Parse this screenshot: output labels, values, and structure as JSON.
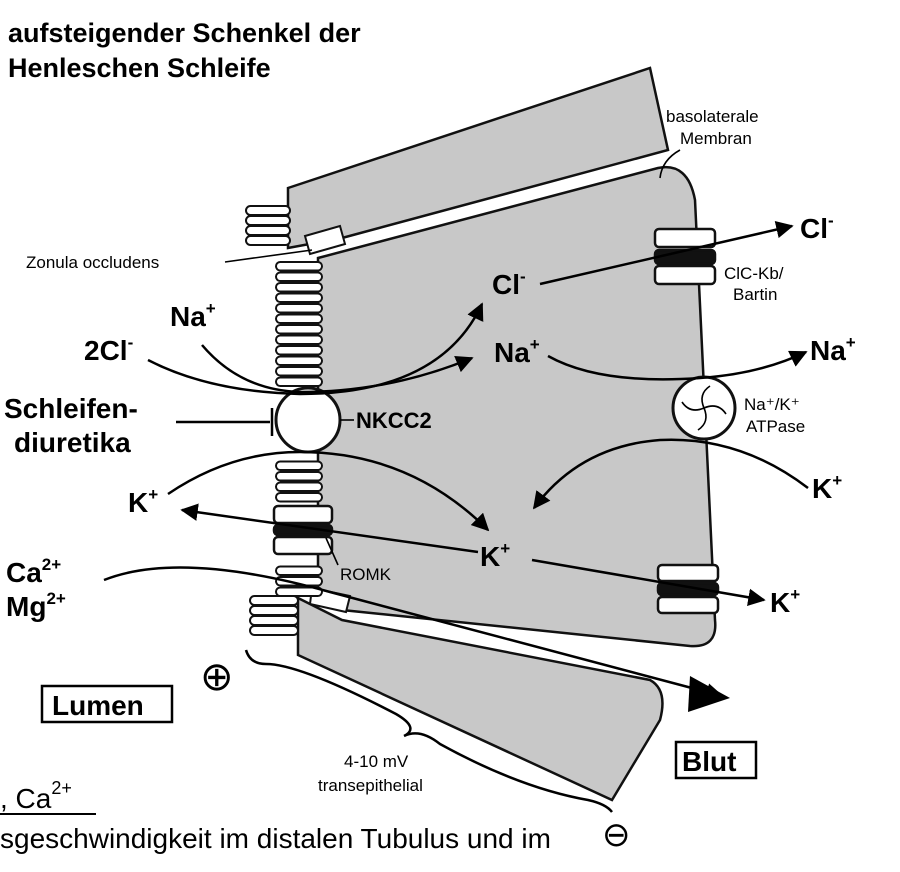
{
  "title": {
    "line1": "aufsteigender Schenkel der",
    "line2": "Henleschen Schleife"
  },
  "labels": {
    "basolateral_line1": "basolaterale",
    "basolateral_line2": "Membran",
    "zonula": "Zonula occludens",
    "clc_line1": "ClC-Kb/",
    "clc_line2": "Bartin",
    "nkcc2": "NKCC2",
    "atpase_line1": "Na⁺/K⁺",
    "atpase_line2": "ATPase",
    "romk": "ROMK",
    "lumen": "Lumen",
    "blut": "Blut",
    "voltage_line1": "4-10 mV",
    "voltage_line2": "transepithelial",
    "plus_sign": "⊕",
    "minus_sign": "⊖"
  },
  "drug": {
    "line1": "Schleifen-",
    "line2": "diuretika"
  },
  "ions": {
    "lumen_2cl": "2Cl",
    "lumen_na": "Na",
    "lumen_k": "K",
    "lumen_ca": "Ca",
    "lumen_mg": "Mg",
    "cell_cl": "Cl",
    "cell_na": "Na",
    "cell_k": "K",
    "blood_cl": "Cl",
    "blood_na": "Na",
    "blood_k_in": "K",
    "blood_k_out": "K",
    "sup_minus": "-",
    "sup_plus": "+",
    "sup_2plus": "2+"
  },
  "footer": {
    "fragment_line": ", Ca",
    "fragment_sup": "2+",
    "sentence": "sgeschwindigkeit im distalen Tubulus und im"
  },
  "colors": {
    "cell_fill": "#c8c8c8",
    "stroke": "#111111",
    "background": "#ffffff"
  }
}
